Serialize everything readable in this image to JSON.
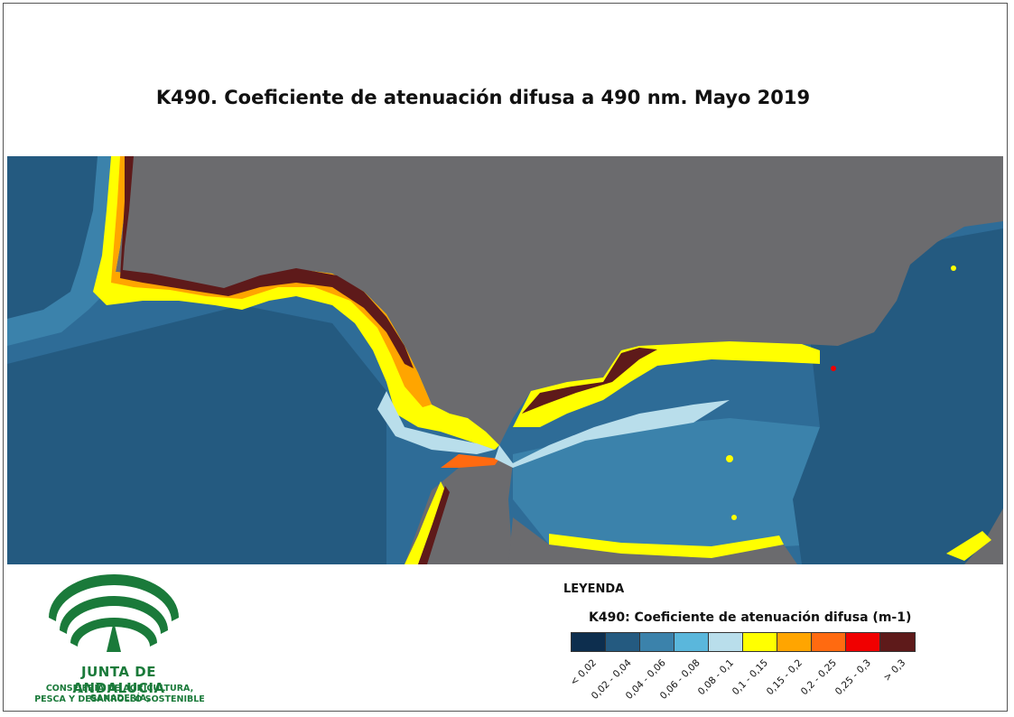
{
  "title": "K490. Coeficiente de atenuación difusa a 490 nm. Mayo 2019",
  "legend": {
    "heading": "LEYENDA",
    "subtitle": "K490: Coeficiente de atenuación difusa (m-1)",
    "classes": [
      {
        "label": "< 0,02",
        "color": "#0d2e4e"
      },
      {
        "label": "0,02 - 0,04",
        "color": "#245a80"
      },
      {
        "label": "0,04 - 0,06",
        "color": "#3b82ab"
      },
      {
        "label": "0,06 - 0,08",
        "color": "#5ab7dc"
      },
      {
        "label": "0,08 - 0,1",
        "color": "#b9deeb"
      },
      {
        "label": "0,1 - 0,15",
        "color": "#ffff00"
      },
      {
        "label": "0,15 - 0,2",
        "color": "#ffa500"
      },
      {
        "label": "0,2 - 0,25",
        "color": "#ff6a10"
      },
      {
        "label": "0,25 - 0,3",
        "color": "#f00000"
      },
      {
        "label": "> 0,3",
        "color": "#5e1a1a"
      }
    ]
  },
  "logo": {
    "name": "JUNTA DE ANDALUCIA",
    "line1": "CONSEJERÍA DE AGRICULTURA, GANADERÍA,",
    "line2": "PESCA Y DESARROLLO SOSTENIBLE"
  },
  "colors": {
    "land": "#6b6b6e",
    "deep_sea": "#245a80",
    "logo_green": "#1a7a3a"
  }
}
